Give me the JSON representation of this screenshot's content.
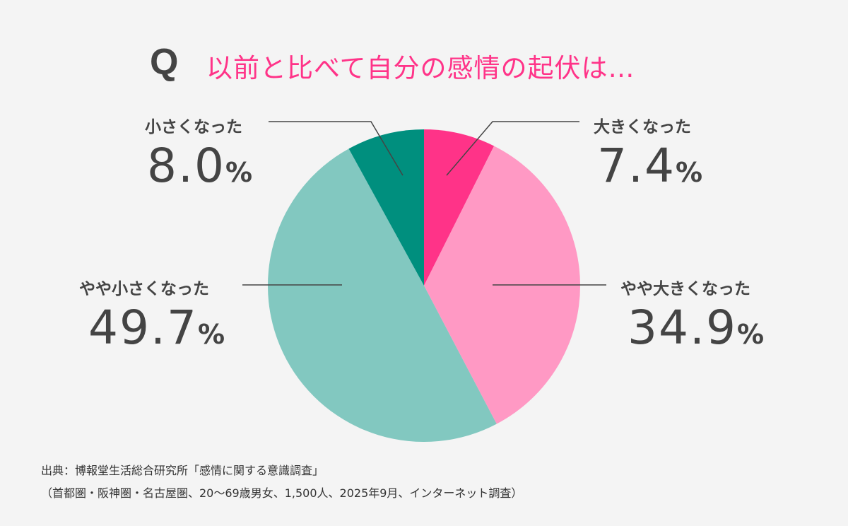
{
  "question_mark": "Q",
  "chart_data": {
    "type": "pie",
    "title": "以前と比べて自分の感情の起伏は…",
    "unit": "%",
    "start": "top, clockwise",
    "slices": [
      {
        "label": "大きくなった",
        "value": 7.4,
        "display": "7.4",
        "color": "#ff3388"
      },
      {
        "label": "やや大きくなった",
        "value": 34.9,
        "display": "34.9",
        "color": "#ff99c4"
      },
      {
        "label": "やや小さくなった",
        "value": 49.7,
        "display": "49.7",
        "color": "#82c8c0"
      },
      {
        "label": "小さくなった",
        "value": 8.0,
        "display": "8.0",
        "color": "#008f7e"
      }
    ]
  },
  "source": {
    "line1": "出典：博報堂生活総合研究所「感情に関する意識調査」",
    "line2": "（首都圏・阪神圏・名古屋圏、20～69歳男女、1,500人、2025年9月、インターネット調査）"
  }
}
